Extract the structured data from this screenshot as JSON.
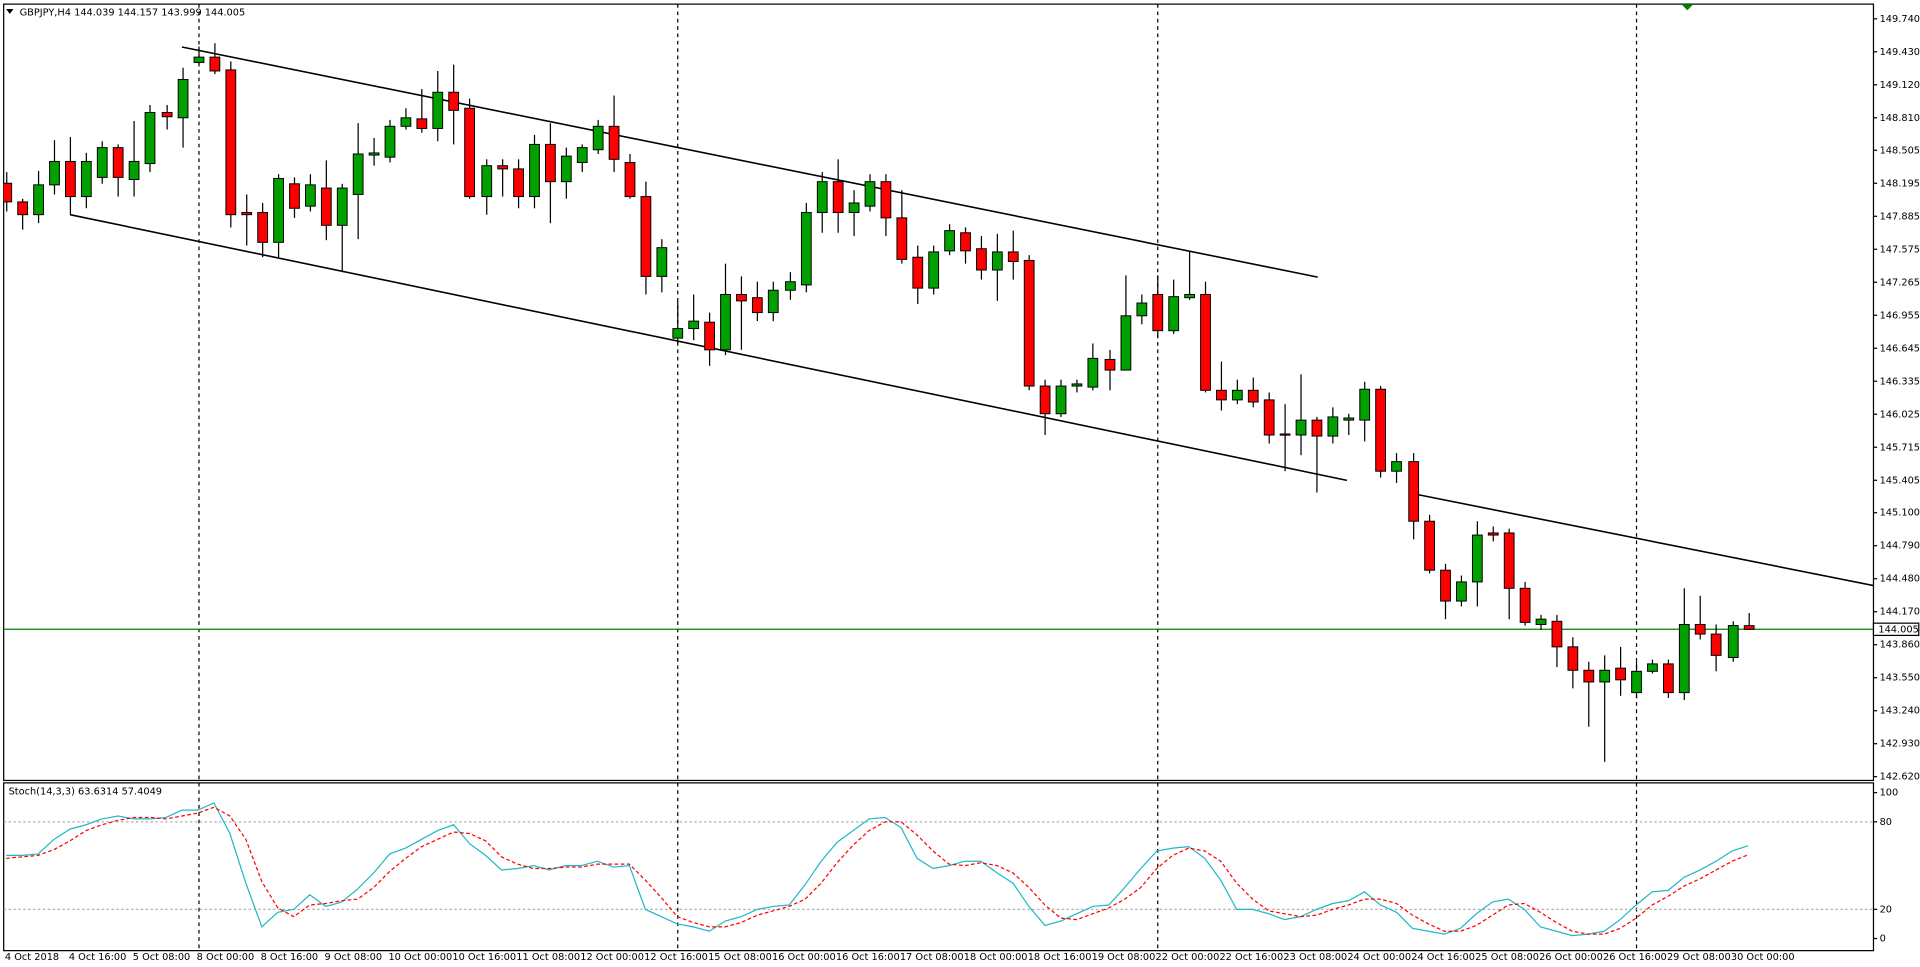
{
  "chart_data": {
    "type": "candlestick",
    "title": "GBPJPY,H4  144.039 144.157 143.999 144.005",
    "up_color": "#00a000",
    "down_color": "#ff0000",
    "categories": [
      "4 Oct 2018",
      null,
      null,
      null,
      "4 Oct 16:00",
      null,
      null,
      null,
      "5 Oct 08:00",
      null,
      null,
      null,
      "8 Oct 00:00",
      null,
      null,
      null,
      "8 Oct 16:00",
      null,
      null,
      null,
      "9 Oct 08:00",
      null,
      null,
      null,
      "10 Oct 00:00",
      null,
      null,
      null,
      "10 Oct 16:00",
      null,
      null,
      null,
      "11 Oct 08:00",
      null,
      null,
      null,
      "12 Oct 00:00",
      null,
      null,
      null,
      "12 Oct 16:00",
      null,
      null,
      null,
      "15 Oct 08:00",
      null,
      null,
      null,
      "16 Oct 00:00",
      null,
      null,
      null,
      "16 Oct 16:00",
      null,
      null,
      null,
      "17 Oct 08:00",
      null,
      null,
      null,
      "18 Oct 00:00",
      null,
      null,
      null,
      "18 Oct 16:00",
      null,
      null,
      null,
      "19 Oct 08:00",
      null,
      null,
      null,
      "22 Oct 00:00",
      null,
      null,
      null,
      "22 Oct 16:00",
      null,
      null,
      null,
      "23 Oct 08:00",
      null,
      null,
      null,
      "24 Oct 00:00",
      null,
      null,
      null,
      "24 Oct 16:00",
      null,
      null,
      null,
      "25 Oct 08:00",
      null,
      null,
      null,
      "26 Oct 00:00",
      null,
      null,
      null,
      "26 Oct 16:00",
      null,
      null,
      null,
      "29 Oct 08:00",
      null,
      null,
      null,
      "30 Oct 00:00",
      null
    ],
    "open": [
      148.195,
      148.02,
      147.9,
      148.18,
      148.4,
      148.07,
      148.25,
      148.53,
      148.23,
      148.38,
      148.86,
      148.81,
      149.33,
      149.38,
      149.26,
      147.92,
      147.92,
      147.64,
      148.19,
      147.98,
      148.15,
      147.8,
      148.09,
      148.46,
      148.44,
      148.73,
      148.8,
      148.71,
      149.05,
      148.9,
      148.07,
      148.36,
      148.33,
      148.07,
      148.56,
      148.21,
      148.39,
      148.51,
      148.73,
      148.39,
      148.07,
      147.32,
      146.74,
      146.83,
      146.89,
      146.63,
      147.15,
      147.12,
      146.98,
      147.19,
      147.24,
      147.92,
      148.21,
      147.92,
      147.98,
      148.21,
      147.87,
      147.5,
      147.21,
      147.56,
      147.73,
      147.58,
      147.38,
      147.55,
      147.47,
      146.29,
      146.03,
      146.29,
      146.28,
      146.54,
      146.44,
      146.95,
      147.15,
      146.81,
      147.12,
      147.15,
      146.25,
      146.16,
      146.25,
      146.16,
      145.84,
      145.83,
      145.97,
      145.82,
      145.97,
      145.97,
      146.26,
      145.49,
      145.58,
      145.02,
      144.56,
      144.27,
      144.45,
      144.91,
      144.91,
      144.39,
      144.05,
      144.08,
      143.84,
      143.62,
      143.51,
      143.64,
      143.41,
      143.61,
      143.68,
      143.41,
      144.05,
      143.96,
      143.74,
      144.039
    ],
    "high": [
      148.3,
      148.05,
      148.31,
      148.6,
      148.63,
      148.48,
      148.59,
      148.56,
      148.78,
      148.93,
      148.93,
      149.28,
      149.48,
      149.51,
      149.34,
      148.09,
      148.01,
      148.28,
      148.25,
      148.28,
      148.41,
      148.19,
      148.76,
      148.62,
      148.79,
      148.9,
      149.08,
      149.25,
      149.31,
      148.99,
      148.42,
      148.42,
      148.42,
      148.65,
      148.76,
      148.53,
      148.56,
      148.79,
      149.02,
      148.47,
      148.21,
      147.67,
      147.09,
      147.15,
      146.98,
      147.44,
      147.32,
      147.27,
      147.27,
      147.36,
      148.01,
      148.3,
      148.42,
      148.13,
      148.28,
      148.28,
      148.13,
      147.61,
      147.61,
      147.81,
      147.78,
      147.7,
      147.72,
      147.75,
      147.52,
      146.35,
      146.35,
      146.35,
      146.69,
      146.63,
      147.33,
      147.15,
      147.33,
      147.29,
      147.55,
      147.27,
      146.52,
      146.35,
      146.37,
      146.23,
      146.12,
      146.4,
      146.0,
      146.09,
      146.03,
      146.33,
      146.29,
      145.66,
      145.66,
      145.08,
      144.62,
      144.51,
      145.02,
      144.97,
      144.95,
      144.45,
      144.14,
      144.14,
      143.93,
      143.7,
      143.76,
      143.84,
      143.7,
      143.72,
      143.72,
      144.39,
      144.32,
      144.05,
      144.08,
      144.157
    ],
    "low": [
      147.93,
      147.76,
      147.82,
      148.09,
      147.9,
      147.96,
      148.19,
      148.07,
      148.07,
      148.3,
      148.7,
      148.53,
      149.32,
      149.22,
      147.78,
      147.61,
      147.5,
      147.5,
      147.87,
      147.93,
      147.66,
      147.36,
      147.67,
      148.36,
      148.39,
      148.7,
      148.67,
      148.59,
      148.56,
      148.05,
      147.9,
      148.07,
      147.96,
      147.96,
      147.82,
      148.05,
      148.3,
      148.47,
      148.3,
      148.05,
      147.15,
      147.17,
      146.69,
      146.72,
      146.48,
      146.58,
      146.63,
      146.9,
      146.9,
      147.1,
      147.17,
      147.73,
      147.73,
      147.7,
      147.93,
      147.7,
      147.44,
      147.06,
      147.15,
      147.52,
      147.44,
      147.29,
      147.09,
      147.29,
      146.25,
      145.83,
      146.0,
      146.23,
      146.25,
      146.25,
      146.44,
      146.87,
      146.75,
      146.78,
      147.1,
      146.23,
      146.06,
      146.12,
      146.09,
      145.75,
      145.49,
      145.64,
      145.29,
      145.75,
      145.83,
      145.77,
      145.43,
      145.38,
      144.85,
      144.53,
      144.1,
      144.22,
      144.22,
      144.83,
      144.1,
      144.04,
      144.0,
      143.65,
      143.45,
      143.09,
      142.76,
      143.38,
      143.36,
      143.59,
      143.36,
      143.34,
      143.91,
      143.61,
      143.7,
      143.999
    ],
    "close": [
      148.02,
      147.9,
      148.18,
      148.4,
      148.07,
      148.4,
      148.53,
      148.25,
      148.4,
      148.86,
      148.82,
      149.17,
      149.38,
      149.25,
      147.9,
      147.9,
      147.64,
      148.24,
      147.96,
      148.18,
      147.8,
      148.15,
      148.47,
      148.48,
      148.73,
      148.81,
      148.71,
      149.05,
      148.88,
      148.07,
      148.36,
      148.33,
      148.07,
      148.56,
      148.21,
      148.45,
      148.53,
      148.73,
      148.42,
      148.07,
      147.32,
      147.59,
      146.83,
      146.9,
      146.63,
      147.15,
      147.09,
      146.98,
      147.19,
      147.27,
      147.92,
      148.21,
      147.92,
      148.01,
      148.21,
      147.87,
      147.48,
      147.21,
      147.55,
      147.75,
      147.56,
      147.38,
      147.55,
      147.46,
      146.29,
      146.03,
      146.29,
      146.31,
      146.55,
      146.44,
      146.95,
      147.07,
      146.81,
      147.13,
      147.15,
      146.25,
      146.16,
      146.25,
      146.14,
      145.83,
      145.83,
      145.97,
      145.82,
      146.0,
      145.99,
      146.26,
      145.49,
      145.58,
      145.02,
      144.56,
      144.27,
      144.45,
      144.89,
      144.89,
      144.39,
      144.07,
      144.1,
      143.84,
      143.62,
      143.51,
      143.62,
      143.53,
      143.61,
      143.68,
      143.41,
      144.05,
      143.96,
      143.76,
      144.04,
      144.005
    ],
    "ylim": [
      142.585,
      149.878
    ],
    "yticks": [
      {
        "value": 149.74,
        "label": "149.740"
      },
      {
        "value": 149.43,
        "label": "149.430"
      },
      {
        "value": 149.12,
        "label": "149.120"
      },
      {
        "value": 148.81,
        "label": "148.810"
      },
      148.505,
      148.195,
      147.885,
      147.575,
      147.265,
      146.955,
      146.645,
      146.335,
      146.025,
      145.715,
      145.405,
      {
        "value": 145.1,
        "label": "145.100"
      },
      {
        "value": 144.79,
        "label": "144.790"
      },
      {
        "value": 144.48,
        "label": "144.480"
      },
      {
        "value": 144.17,
        "label": "144.170"
      },
      {
        "value": 143.86,
        "label": "143.860"
      },
      {
        "value": 143.55,
        "label": "143.550"
      },
      {
        "value": 143.24,
        "label": "143.240"
      },
      {
        "value": 142.93,
        "label": "142.930"
      },
      {
        "value": 142.62,
        "label": "142.620"
      }
    ],
    "hline": {
      "value": 144.005,
      "color": "#008000"
    },
    "period_separators": [
      12,
      42,
      72,
      102
    ],
    "trendlines": [
      {
        "x": [
          11,
          82.07
        ],
        "y": [
          149.475,
          147.313
        ]
      },
      {
        "x": [
          4,
          83.9
        ],
        "y": [
          147.9,
          145.404
        ]
      },
      {
        "x": [
          88.1,
          116.9
        ],
        "y": [
          145.277,
          144.414
        ]
      }
    ],
    "indicator": {
      "type": "line",
      "title": "Stoch(14,3,3) 63.6314 57.4049",
      "ylim": [
        -8.3,
        106.7
      ],
      "yticks": [
        100,
        80,
        20,
        0
      ],
      "levels": [
        80,
        20
      ],
      "series": [
        {
          "color": "#20b8c8",
          "dashed": false,
          "values": [
            57,
            57,
            58,
            68,
            75,
            78,
            82,
            84,
            82,
            82,
            83,
            88,
            88,
            93,
            72,
            38,
            8,
            18,
            20,
            30,
            22,
            25,
            34,
            45,
            58,
            62,
            68,
            74,
            78,
            65,
            57,
            47,
            48,
            50,
            47,
            50,
            50,
            53,
            49,
            50,
            20,
            15,
            10,
            8,
            5,
            12,
            15,
            20,
            22,
            23,
            37,
            53,
            66,
            74,
            82,
            83,
            76,
            55,
            48,
            50,
            53,
            53,
            45,
            38,
            22,
            9,
            12,
            17,
            22,
            23,
            35,
            48,
            60,
            62,
            63,
            55,
            40,
            20,
            20,
            17,
            13,
            15,
            20,
            24,
            26,
            32,
            23,
            18,
            7,
            5,
            3,
            7,
            17,
            25,
            27,
            20,
            8,
            5,
            2,
            3,
            5,
            13,
            23,
            32,
            33,
            42,
            47,
            53,
            60,
            63.6314
          ]
        },
        {
          "color": "#ff0000",
          "dashed": true,
          "values": [
            55,
            56,
            57,
            61,
            67,
            74,
            78,
            81,
            83,
            83,
            82,
            84,
            86,
            90,
            84,
            68,
            39,
            21,
            15,
            23,
            24,
            26,
            27,
            35,
            46,
            55,
            63,
            68,
            73,
            72,
            67,
            56,
            51,
            48,
            48,
            49,
            49,
            51,
            51,
            51,
            40,
            28,
            15,
            11,
            8,
            8,
            11,
            16,
            19,
            22,
            27,
            38,
            52,
            64,
            74,
            80,
            80,
            71,
            60,
            51,
            50,
            52,
            50,
            45,
            35,
            23,
            14,
            13,
            17,
            21,
            27,
            35,
            48,
            57,
            62,
            60,
            53,
            38,
            27,
            19,
            17,
            15,
            16,
            20,
            23,
            27,
            27,
            24,
            16,
            10,
            5,
            5,
            9,
            16,
            23,
            24,
            18,
            11,
            5,
            3,
            3,
            7,
            14,
            23,
            29,
            36,
            41,
            47,
            53,
            57.4049
          ]
        }
      ]
    }
  }
}
